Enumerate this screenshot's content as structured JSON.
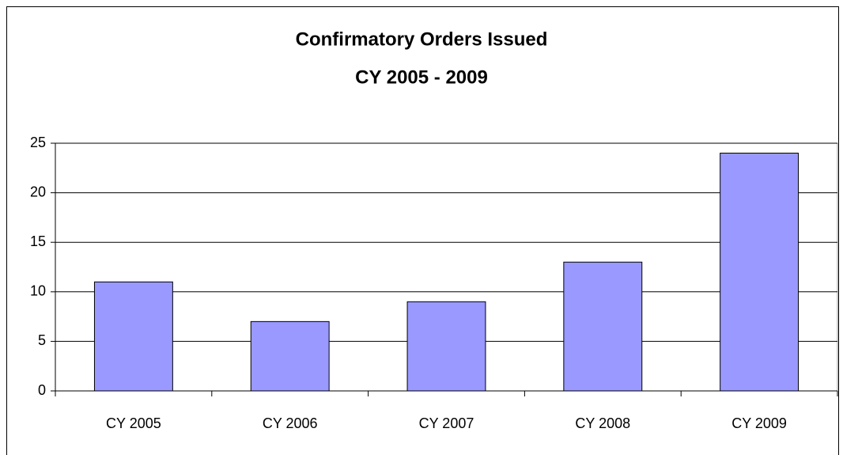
{
  "chart_data": {
    "type": "bar",
    "title": "Confirmatory Orders Issued",
    "subtitle": "CY 2005 - 2009",
    "categories": [
      "CY 2005",
      "CY 2006",
      "CY 2007",
      "CY 2008",
      "CY 2009"
    ],
    "values": [
      11,
      7,
      9,
      13,
      24
    ],
    "color": "#9999ff",
    "ylim": [
      0,
      25
    ],
    "yticks": [
      0,
      5,
      10,
      15,
      20,
      25
    ],
    "grid": true
  }
}
